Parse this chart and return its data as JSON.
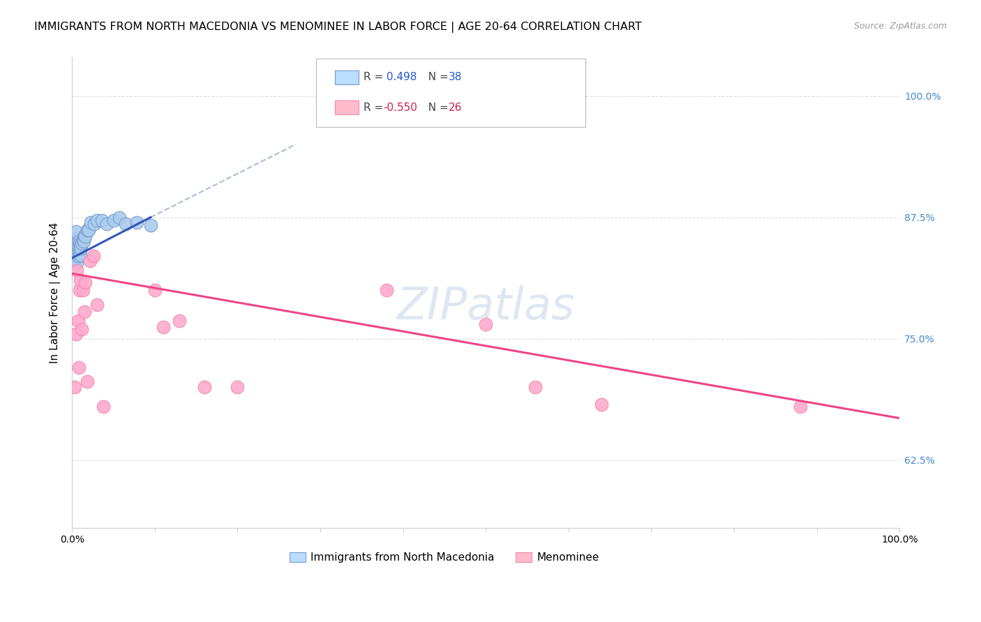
{
  "title": "IMMIGRANTS FROM NORTH MACEDONIA VS MENOMINEE IN LABOR FORCE | AGE 20-64 CORRELATION CHART",
  "source": "Source: ZipAtlas.com",
  "ylabel": "In Labor Force | Age 20-64",
  "xlim": [
    0.0,
    1.0
  ],
  "ylim": [
    0.555,
    1.04
  ],
  "yticks": [
    0.625,
    0.75,
    0.875,
    1.0
  ],
  "ytick_labels": [
    "62.5%",
    "75.0%",
    "87.5%",
    "100.0%"
  ],
  "xticks": [
    0.0,
    0.1,
    0.2,
    0.3,
    0.4,
    0.5,
    0.6,
    0.7,
    0.8,
    0.9,
    1.0
  ],
  "xtick_labels": [
    "0.0%",
    "",
    "",
    "",
    "",
    "",
    "",
    "",
    "",
    "",
    "100.0%"
  ],
  "blue_R": "0.498",
  "blue_N": "38",
  "pink_R": "-0.550",
  "pink_N": "26",
  "blue_scatter_x": [
    0.002,
    0.003,
    0.003,
    0.004,
    0.004,
    0.005,
    0.005,
    0.005,
    0.005,
    0.006,
    0.006,
    0.006,
    0.007,
    0.007,
    0.008,
    0.008,
    0.009,
    0.009,
    0.01,
    0.01,
    0.011,
    0.012,
    0.013,
    0.014,
    0.015,
    0.016,
    0.018,
    0.02,
    0.023,
    0.027,
    0.03,
    0.036,
    0.042,
    0.05,
    0.057,
    0.065,
    0.078,
    0.095
  ],
  "blue_scatter_y": [
    0.835,
    0.845,
    0.853,
    0.838,
    0.848,
    0.832,
    0.842,
    0.852,
    0.86,
    0.828,
    0.838,
    0.848,
    0.835,
    0.845,
    0.84,
    0.85,
    0.838,
    0.848,
    0.836,
    0.846,
    0.843,
    0.848,
    0.852,
    0.85,
    0.856,
    0.855,
    0.862,
    0.862,
    0.87,
    0.868,
    0.872,
    0.872,
    0.868,
    0.872,
    0.875,
    0.868,
    0.87,
    0.867
  ],
  "pink_scatter_x": [
    0.003,
    0.005,
    0.006,
    0.007,
    0.008,
    0.009,
    0.01,
    0.012,
    0.013,
    0.015,
    0.016,
    0.018,
    0.022,
    0.026,
    0.03,
    0.038,
    0.1,
    0.11,
    0.13,
    0.16,
    0.2,
    0.38,
    0.5,
    0.56,
    0.64,
    0.88
  ],
  "pink_scatter_y": [
    0.7,
    0.755,
    0.82,
    0.768,
    0.72,
    0.8,
    0.81,
    0.76,
    0.8,
    0.778,
    0.808,
    0.706,
    0.83,
    0.835,
    0.785,
    0.68,
    0.8,
    0.762,
    0.768,
    0.7,
    0.7,
    0.8,
    0.765,
    0.7,
    0.682,
    0.68
  ],
  "pink_line_x0": 0.0,
  "pink_line_y0": 0.817,
  "pink_line_x1": 1.0,
  "pink_line_y1": 0.668,
  "blue_line_solid_x0": 0.0,
  "blue_line_solid_y0": 0.833,
  "blue_line_solid_x1": 0.095,
  "blue_line_solid_y1": 0.875,
  "blue_line_dash_x0": 0.095,
  "blue_line_dash_y0": 0.875,
  "blue_line_dash_x1": 0.27,
  "blue_line_dash_y1": 0.95,
  "blue_line_color": "#3355BB",
  "pink_line_color": "#EE4488",
  "blue_dot_color": "#AACCEE",
  "pink_dot_color": "#FFAACC",
  "blue_dot_edge": "#7799CC",
  "pink_dot_edge": "#EE88AA",
  "dashed_line_color": "#AABBDD",
  "watermark_color": "#C8D8E8",
  "background_color": "#ffffff",
  "grid_color": "#DDDDDD",
  "title_fontsize": 11.5,
  "axis_label_fontsize": 11,
  "tick_fontsize": 10,
  "right_tick_color": "#4488CC",
  "legend_box_color_blue": "#BBDDFF",
  "legend_box_color_pink": "#FFBBCC"
}
